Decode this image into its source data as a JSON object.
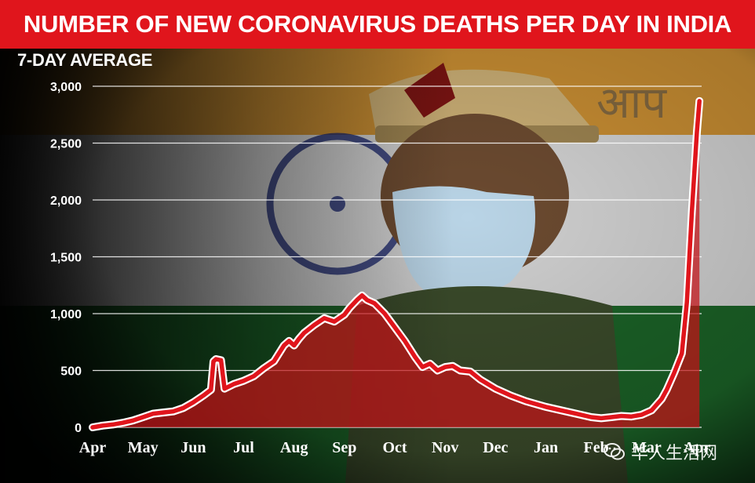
{
  "header": {
    "title": "NUMBER OF NEW CORONAVIRUS DEATHS PER DAY IN INDIA",
    "subtitle": "7-DAY AVERAGE"
  },
  "watermark": {
    "text": "华人生活网",
    "icon": "wechat-icon"
  },
  "colors": {
    "banner": "#e0151c",
    "line": "#e0151c",
    "area": "#c41218",
    "flag_saffron": "#e8a33a",
    "flag_white": "#f2f2f2",
    "flag_green": "#1d6b2a",
    "chakra": "#1f2b6e"
  },
  "background_image": "masked police officer in front of Indian flag (photo)",
  "chart_data": {
    "type": "area",
    "title": "NUMBER OF NEW CORONAVIRUS DEATHS PER DAY IN INDIA",
    "subtitle": "7-DAY AVERAGE",
    "xlabel": "",
    "ylabel": "",
    "ylim": [
      0,
      3000
    ],
    "yticks": [
      {
        "value": 0,
        "label": "0"
      },
      {
        "value": 500,
        "label": "500"
      },
      {
        "value": 1000,
        "label": "1,000"
      },
      {
        "value": 1500,
        "label": "1,500"
      },
      {
        "value": 2000,
        "label": "2,000"
      },
      {
        "value": 2500,
        "label": "2,500"
      },
      {
        "value": 3000,
        "label": "3,000"
      }
    ],
    "xticks": [
      "Apr",
      "May",
      "Jun",
      "Jul",
      "Aug",
      "Sep",
      "Oct",
      "Nov",
      "Dec",
      "Jan",
      "Feb",
      "Mar",
      "Apr"
    ],
    "x_unit": "months since start of April 2020",
    "grid": true,
    "series": [
      {
        "name": "",
        "points": [
          [
            0.0,
            0
          ],
          [
            0.2,
            15
          ],
          [
            0.4,
            25
          ],
          [
            0.6,
            40
          ],
          [
            0.8,
            60
          ],
          [
            1.0,
            90
          ],
          [
            1.2,
            120
          ],
          [
            1.4,
            130
          ],
          [
            1.6,
            140
          ],
          [
            1.8,
            170
          ],
          [
            2.0,
            220
          ],
          [
            2.2,
            280
          ],
          [
            2.35,
            330
          ],
          [
            2.4,
            580
          ],
          [
            2.45,
            600
          ],
          [
            2.55,
            590
          ],
          [
            2.62,
            340
          ],
          [
            2.8,
            380
          ],
          [
            3.0,
            410
          ],
          [
            3.2,
            450
          ],
          [
            3.4,
            520
          ],
          [
            3.6,
            580
          ],
          [
            3.8,
            720
          ],
          [
            3.9,
            760
          ],
          [
            4.0,
            720
          ],
          [
            4.1,
            780
          ],
          [
            4.2,
            830
          ],
          [
            4.4,
            900
          ],
          [
            4.6,
            960
          ],
          [
            4.8,
            930
          ],
          [
            5.0,
            990
          ],
          [
            5.1,
            1050
          ],
          [
            5.25,
            1120
          ],
          [
            5.35,
            1160
          ],
          [
            5.45,
            1120
          ],
          [
            5.6,
            1090
          ],
          [
            5.8,
            1000
          ],
          [
            6.0,
            880
          ],
          [
            6.2,
            760
          ],
          [
            6.4,
            620
          ],
          [
            6.55,
            530
          ],
          [
            6.7,
            560
          ],
          [
            6.85,
            500
          ],
          [
            7.0,
            530
          ],
          [
            7.15,
            540
          ],
          [
            7.3,
            500
          ],
          [
            7.5,
            490
          ],
          [
            7.7,
            420
          ],
          [
            8.0,
            340
          ],
          [
            8.3,
            280
          ],
          [
            8.6,
            230
          ],
          [
            9.0,
            180
          ],
          [
            9.3,
            150
          ],
          [
            9.6,
            120
          ],
          [
            9.9,
            90
          ],
          [
            10.1,
            80
          ],
          [
            10.3,
            90
          ],
          [
            10.5,
            100
          ],
          [
            10.7,
            95
          ],
          [
            10.9,
            110
          ],
          [
            11.1,
            150
          ],
          [
            11.3,
            250
          ],
          [
            11.4,
            330
          ],
          [
            11.55,
            480
          ],
          [
            11.7,
            650
          ],
          [
            11.8,
            1100
          ],
          [
            11.9,
            1900
          ],
          [
            12.0,
            2600
          ],
          [
            12.05,
            2870
          ]
        ]
      }
    ]
  }
}
